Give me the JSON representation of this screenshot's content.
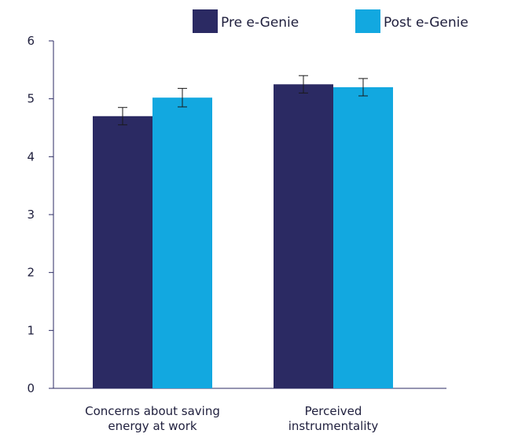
{
  "chart_data": {
    "type": "bar",
    "title": "",
    "xlabel": "",
    "ylabel": "",
    "ylim": [
      0,
      6
    ],
    "yticks": [
      "0",
      "1",
      "2",
      "3",
      "4",
      "5",
      "6"
    ],
    "categories": [
      [
        "Concerns about saving",
        "energy at work"
      ],
      [
        "Perceived",
        "instrumentality"
      ]
    ],
    "series": [
      {
        "name": "Pre e-Genie",
        "color": "#2b2a63",
        "values": [
          4.7,
          5.25
        ],
        "error": [
          0.15,
          0.15
        ]
      },
      {
        "name": "Post e-Genie",
        "color": "#12a8e0",
        "values": [
          5.02,
          5.2
        ],
        "error": [
          0.16,
          0.15
        ]
      }
    ],
    "grid": false,
    "legend": "top-right",
    "error_bars": true
  }
}
